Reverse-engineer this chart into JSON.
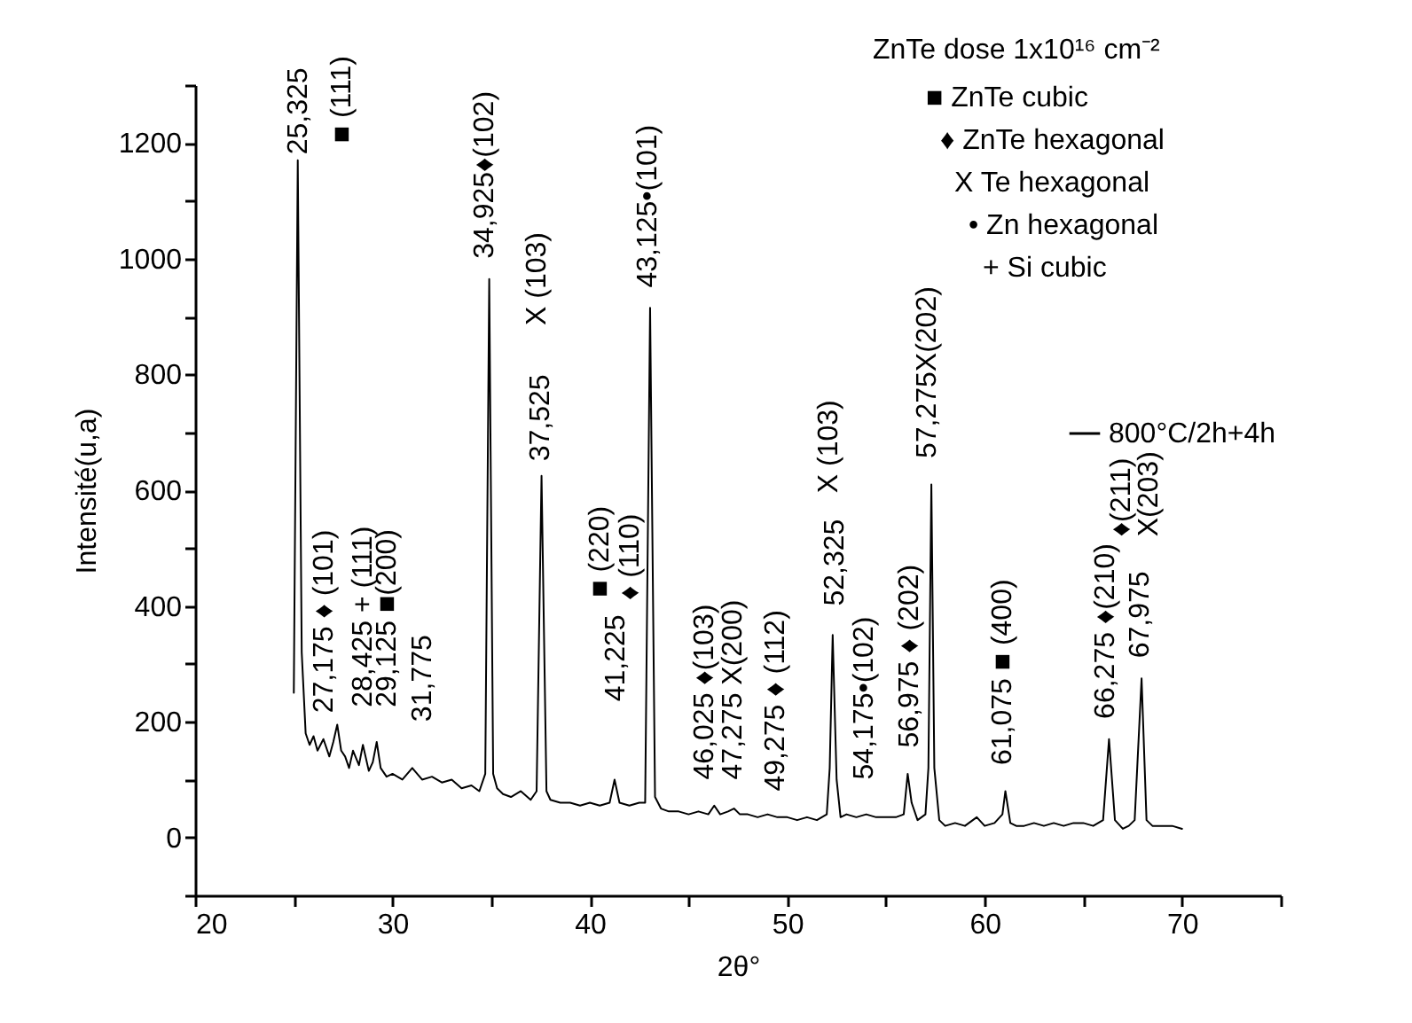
{
  "chart_data": {
    "type": "line",
    "legend_title": "ZnTe dose 1x10¹⁶ cm⁻²",
    "xlabel": "2θ°",
    "ylabel": "Intensité(u,a)",
    "xlim": [
      20,
      75
    ],
    "ylim": [
      -100,
      1300
    ],
    "xticks": [
      20,
      {
        "value": 25,
        "label": null
      },
      30,
      {
        "value": 35,
        "label": null
      },
      40,
      {
        "value": 45,
        "label": null
      },
      50,
      {
        "value": 55,
        "label": null
      },
      60,
      {
        "value": 65,
        "label": null
      },
      70,
      {
        "value": 75,
        "label": null
      }
    ],
    "yticks": [
      {
        "value": -100,
        "label": null
      },
      0,
      {
        "value": 100,
        "label": null
      },
      200,
      {
        "value": 300,
        "label": null
      },
      400,
      {
        "value": 500,
        "label": null
      },
      600,
      {
        "value": 700,
        "label": null
      },
      800,
      {
        "value": 900,
        "label": null
      },
      1000,
      {
        "value": 1100,
        "label": null
      },
      1200,
      {
        "value": 1300,
        "label": null
      }
    ],
    "grid": false,
    "legend": "top right",
    "marker": "none",
    "line_style": "solid",
    "series": [
      {
        "name": "800°C/2h+4h",
        "color": "#000000",
        "x": [
          25.0,
          25.2,
          25.4,
          25.6,
          25.8,
          26.0,
          26.2,
          26.5,
          26.8,
          27.0,
          27.2,
          27.4,
          27.6,
          27.8,
          28.0,
          28.3,
          28.5,
          28.8,
          29.0,
          29.2,
          29.4,
          29.7,
          30.0,
          30.5,
          31.0,
          31.5,
          32.0,
          32.5,
          33.0,
          33.5,
          34.0,
          34.4,
          34.7,
          34.9,
          35.1,
          35.3,
          35.6,
          36.0,
          36.5,
          37.0,
          37.3,
          37.55,
          37.8,
          38.0,
          38.5,
          39.0,
          39.5,
          40.0,
          40.5,
          41.0,
          41.25,
          41.5,
          42.0,
          42.5,
          42.8,
          43.05,
          43.3,
          43.6,
          44.0,
          44.5,
          45.0,
          45.5,
          46.0,
          46.3,
          46.6,
          47.0,
          47.3,
          47.6,
          48.0,
          48.5,
          49.0,
          49.5,
          50.0,
          50.5,
          51.0,
          51.5,
          52.0,
          52.15,
          52.3,
          52.5,
          52.7,
          53.0,
          53.5,
          54.0,
          54.5,
          55.0,
          55.5,
          55.9,
          56.1,
          56.3,
          56.6,
          57.0,
          57.15,
          57.3,
          57.45,
          57.7,
          58.0,
          58.5,
          59.0,
          59.6,
          60.0,
          60.5,
          60.9,
          61.05,
          61.3,
          61.6,
          62.0,
          62.5,
          63.0,
          63.5,
          64.0,
          64.5,
          65.0,
          65.5,
          66.0,
          66.3,
          66.6,
          67.0,
          67.3,
          67.6,
          67.95,
          68.2,
          68.5,
          69.0,
          69.5,
          70.0
        ],
        "values": [
          250,
          1170,
          320,
          180,
          160,
          175,
          150,
          170,
          140,
          165,
          195,
          150,
          140,
          120,
          150,
          125,
          160,
          115,
          130,
          165,
          120,
          105,
          110,
          100,
          120,
          100,
          105,
          95,
          100,
          85,
          90,
          80,
          110,
          965,
          110,
          85,
          75,
          70,
          80,
          65,
          80,
          625,
          80,
          65,
          60,
          60,
          55,
          60,
          55,
          60,
          100,
          60,
          55,
          60,
          60,
          915,
          70,
          50,
          45,
          45,
          40,
          45,
          40,
          55,
          40,
          45,
          50,
          40,
          40,
          35,
          40,
          35,
          35,
          30,
          35,
          30,
          40,
          120,
          350,
          100,
          35,
          40,
          35,
          40,
          35,
          35,
          35,
          40,
          110,
          60,
          30,
          40,
          120,
          610,
          120,
          30,
          20,
          25,
          20,
          35,
          20,
          25,
          40,
          80,
          25,
          20,
          20,
          25,
          20,
          25,
          20,
          25,
          25,
          20,
          30,
          170,
          30,
          15,
          20,
          30,
          275,
          30,
          20,
          20,
          20,
          15
        ]
      }
    ],
    "annotations": [
      "25,325",
      "■ (111)",
      "34,925♦(102)",
      "X (103)",
      "37,525",
      "43,125•(101)",
      "27,175 ♦ (101)",
      "28,425 + (111)",
      "29,125 ■(200)",
      "31,775",
      "■ (220)",
      "♦ (110)",
      "41,225",
      "46,025 ♦(103)",
      "47,275 X(200)",
      "49,275 ♦ (112)",
      "52,325",
      "X (103)",
      "54,175•(102)",
      "56,975 ♦ (202)",
      "57,275X(202)",
      "61,075 ■ (400)",
      "66,275 ♦(210)",
      "67,975",
      "♦(211)",
      "X(203)",
      "■  ZnTe cubic",
      "♦  ZnTe hexagonal",
      "X  Te hexagonal",
      "•  Zn hexagonal",
      "+  Si cubic"
    ]
  }
}
